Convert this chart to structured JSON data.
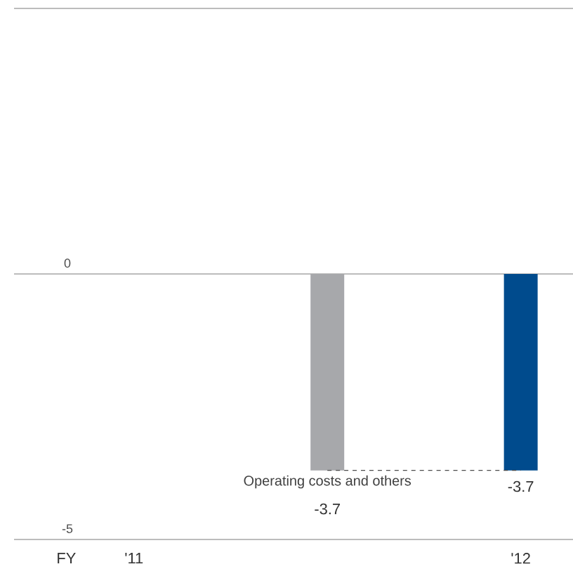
{
  "chart_data": {
    "type": "bar",
    "xlabel": "FY",
    "categories": [
      "'11",
      "Operating costs and others",
      "'12"
    ],
    "values": [
      0,
      -3.7,
      -3.7
    ],
    "colors": [
      "#a7a8ab",
      "#a7a8ab",
      "#004b8d"
    ],
    "value_labels": [
      null,
      "-3.7",
      "-3.7"
    ],
    "ylim": [
      -5,
      5
    ],
    "yticks": [
      {
        "value": 5,
        "label": null
      },
      0,
      -5
    ],
    "grid": "y"
  }
}
